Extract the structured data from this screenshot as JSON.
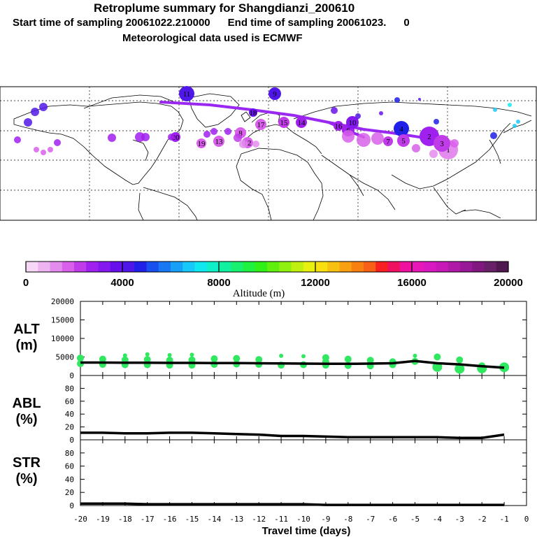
{
  "header": {
    "title": "Retroplume summary for Shangdianzi_200610",
    "subtitle": "Start time of sampling 20061022.210000      End time of sampling 20061023.      0",
    "met": "Meteorological data used is ECMWF"
  },
  "colors": {
    "scale": [
      "#f6d8f6",
      "#eeb4f2",
      "#e48cee",
      "#d860ea",
      "#c03ce8",
      "#a020f0",
      "#8418ee",
      "#6810ec",
      "#5018e8",
      "#2020e8",
      "#1850f0",
      "#1878f4",
      "#18a0f8",
      "#18c8f8",
      "#10e8f0",
      "#10f0c8",
      "#10f0a0",
      "#18f070",
      "#20f040",
      "#30f018",
      "#60f010",
      "#90f010",
      "#c0f010",
      "#e8f010",
      "#f8e010",
      "#f8c010",
      "#f8a010",
      "#f88010",
      "#f86018",
      "#f82020",
      "#f01060",
      "#f010a0",
      "#e818b8",
      "#d818c0",
      "#c818b8",
      "#b018a8",
      "#981898",
      "#801880",
      "#682068",
      "#501850"
    ],
    "track": "#9a28f0",
    "points": "#30e860",
    "line": "#000000"
  },
  "colorbar": {
    "ticks": [
      "0",
      "4000",
      "8000",
      "12000",
      "16000",
      "20000"
    ],
    "label": "Altitude (m)"
  },
  "map_markers": [
    {
      "label": "11"
    },
    {
      "label": "9"
    },
    {
      "label": "1"
    },
    {
      "label": "2"
    },
    {
      "label": "3"
    },
    {
      "label": "4"
    },
    {
      "label": "5"
    },
    {
      "label": "6"
    },
    {
      "label": "7"
    },
    {
      "label": "8"
    },
    {
      "label": "10"
    },
    {
      "label": "12"
    },
    {
      "label": "13"
    },
    {
      "label": "14"
    },
    {
      "label": "15"
    },
    {
      "label": "16"
    },
    {
      "label": "17"
    },
    {
      "label": "18"
    },
    {
      "label": "19"
    },
    {
      "label": "20"
    }
  ],
  "chart_data": [
    {
      "type": "line",
      "panel": "ALT",
      "title": "ALT (m)",
      "title_line1": "ALT",
      "title_line2": "(m)",
      "xlabel": "Travel time (days)",
      "x": [
        -20,
        -19,
        -18,
        -17,
        -16,
        -15,
        -14,
        -13,
        -12,
        -11,
        -10,
        -9,
        -8,
        -7,
        -6,
        -5,
        -4,
        -3,
        -2,
        -1
      ],
      "mean_line": [
        3500,
        3500,
        3450,
        3450,
        3400,
        3400,
        3350,
        3350,
        3300,
        3250,
        3200,
        3150,
        3150,
        3200,
        3300,
        3900,
        3300,
        3000,
        2500,
        2100
      ],
      "scatter_x": [
        -20,
        -20,
        -19,
        -19,
        -18,
        -18,
        -18,
        -17,
        -17,
        -17,
        -16,
        -16,
        -16,
        -15,
        -15,
        -15,
        -14,
        -14,
        -13,
        -13,
        -12,
        -12,
        -11,
        -11,
        -10,
        -10,
        -9,
        -9,
        -9,
        -8,
        -8,
        -7,
        -7,
        -6,
        -6,
        -5,
        -5,
        -4,
        -4,
        -3,
        -3,
        -2,
        -2,
        -1,
        -1
      ],
      "scatter_y": [
        3200,
        4700,
        3000,
        4400,
        2900,
        4200,
        5400,
        2900,
        4300,
        5700,
        2800,
        4100,
        5500,
        2800,
        4200,
        5600,
        3000,
        4500,
        3100,
        4600,
        3000,
        4300,
        2800,
        5300,
        2900,
        5200,
        2800,
        3700,
        4800,
        2700,
        4400,
        2600,
        4100,
        2900,
        3700,
        3800,
        5300,
        2300,
        5000,
        1800,
        4200,
        2600,
        1900,
        2200,
        2600
      ],
      "xlim": [
        -20,
        0
      ],
      "ylim": [
        0,
        20000
      ],
      "yticks": [
        0,
        5000,
        10000,
        15000,
        20000
      ],
      "ytick_labels": [
        "0",
        "5000",
        "10000",
        "15000",
        "20000"
      ]
    },
    {
      "type": "line",
      "panel": "ABL",
      "title": "ABL (%)",
      "title_line1": "ABL",
      "title_line2": "(%)",
      "x": [
        -20,
        -19,
        -18,
        -17,
        -16,
        -15,
        -14,
        -13,
        -12,
        -11,
        -10,
        -9,
        -8,
        -7,
        -6,
        -5,
        -4,
        -3,
        -2,
        -1
      ],
      "values": [
        11,
        11,
        10,
        10,
        11,
        11,
        10,
        9,
        8,
        6,
        6,
        5,
        4,
        4,
        4,
        4,
        4,
        3,
        3,
        8
      ],
      "xlim": [
        -20,
        0
      ],
      "ylim": [
        0,
        100
      ],
      "yticks": [
        0,
        20,
        40,
        60,
        80
      ],
      "ytick_labels": [
        "0",
        "20",
        "40",
        "60",
        "80"
      ]
    },
    {
      "type": "line",
      "panel": "STR",
      "title": "STR (%)",
      "title_line1": "STR",
      "title_line2": "(%)",
      "x": [
        -20,
        -19,
        -18,
        -17,
        -16,
        -15,
        -14,
        -13,
        -12,
        -11,
        -10,
        -9,
        -8,
        -7,
        -6,
        -5,
        -4,
        -3,
        -2,
        -1
      ],
      "values": [
        3,
        3,
        3,
        2,
        2,
        2,
        2,
        2,
        2,
        2,
        2,
        1,
        1,
        1,
        1,
        1,
        1,
        1,
        1,
        1
      ],
      "xlim": [
        -20,
        0
      ],
      "ylim": [
        0,
        100
      ],
      "yticks": [
        0,
        20,
        40,
        60,
        80
      ],
      "ytick_labels": [
        "0",
        "20",
        "40",
        "60",
        "80"
      ],
      "xticks": [
        -20,
        -19,
        -18,
        -17,
        -16,
        -15,
        -14,
        -13,
        -12,
        -11,
        -10,
        -9,
        -8,
        -7,
        -6,
        -5,
        -4,
        -3,
        -2,
        -1,
        0
      ],
      "xtick_labels": [
        "-20",
        "-19",
        "-18",
        "-17",
        "-16",
        "-15",
        "-14",
        "-13",
        "-12",
        "-11",
        "-10",
        "-9",
        "-8",
        "-7",
        "-6",
        "-5",
        "-4",
        "-3",
        "-2",
        "-1",
        "0"
      ]
    }
  ]
}
